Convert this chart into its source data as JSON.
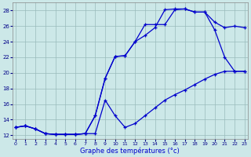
{
  "xlabel": "Graphe des températures (°c)",
  "bg_color": "#cce8e8",
  "line_color": "#0000cc",
  "grid_color": "#99bbbb",
  "x_ticks": [
    0,
    1,
    2,
    3,
    4,
    5,
    6,
    7,
    8,
    9,
    10,
    11,
    12,
    13,
    14,
    15,
    16,
    17,
    18,
    19,
    20,
    21,
    22,
    23
  ],
  "y_ticks": [
    12,
    14,
    16,
    18,
    20,
    22,
    24,
    26,
    28
  ],
  "ylim": [
    11.5,
    29.0
  ],
  "xlim": [
    -0.3,
    23.3
  ],
  "line1_x": [
    0,
    1,
    2,
    3,
    4,
    5,
    6,
    7,
    8,
    9,
    10,
    11,
    12,
    13,
    14,
    15,
    16,
    17,
    18,
    19,
    20,
    21,
    22,
    23
  ],
  "line1_y": [
    13.0,
    13.2,
    12.8,
    12.2,
    12.1,
    12.1,
    12.1,
    12.2,
    14.5,
    19.3,
    22.1,
    22.2,
    24.0,
    24.8,
    25.8,
    28.1,
    28.2,
    28.2,
    27.8,
    27.8,
    25.5,
    22.0,
    20.2,
    20.2
  ],
  "line2_x": [
    0,
    1,
    2,
    3,
    4,
    5,
    6,
    7,
    8,
    9,
    10,
    11,
    12,
    13,
    14,
    15,
    16,
    17,
    18,
    19,
    20,
    21,
    22,
    23
  ],
  "line2_y": [
    13.0,
    13.2,
    12.8,
    12.2,
    12.1,
    12.1,
    12.1,
    12.2,
    14.5,
    19.3,
    22.1,
    22.2,
    24.0,
    26.2,
    26.2,
    26.2,
    28.1,
    28.2,
    27.8,
    27.8,
    26.5,
    25.8,
    26.0,
    25.8
  ],
  "line3_x": [
    0,
    1,
    2,
    3,
    4,
    5,
    6,
    7,
    8,
    9,
    10,
    11,
    12,
    13,
    14,
    15,
    16,
    17,
    18,
    19,
    20,
    21,
    22,
    23
  ],
  "line3_y": [
    13.0,
    13.2,
    12.8,
    12.2,
    12.1,
    12.1,
    12.1,
    12.2,
    12.2,
    16.5,
    14.5,
    13.0,
    13.5,
    14.5,
    15.5,
    16.5,
    17.2,
    17.8,
    18.5,
    19.2,
    19.8,
    20.2,
    20.2,
    20.2
  ]
}
